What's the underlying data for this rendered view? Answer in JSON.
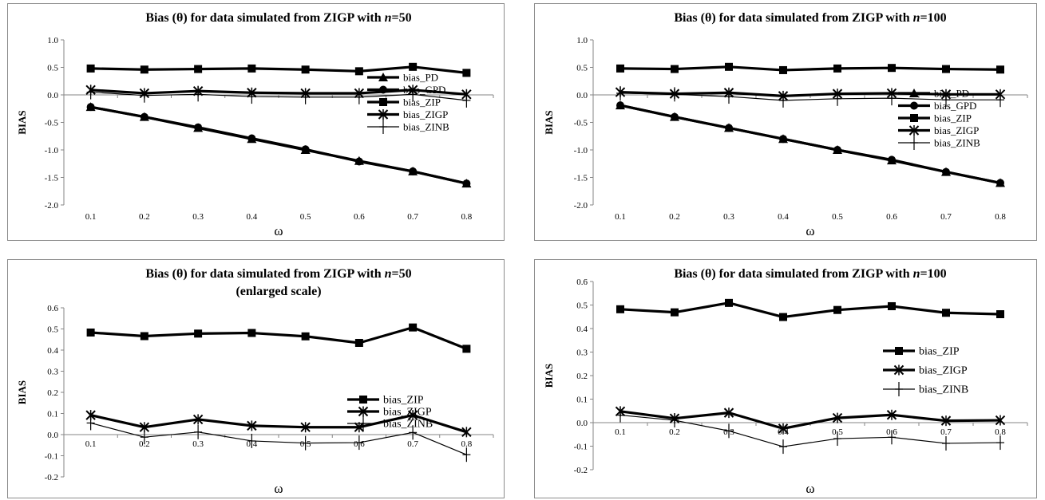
{
  "charts": [
    {
      "type": "line",
      "title_parts": [
        "Bias (θ) for data simulated from ZIGP with ",
        "n",
        "=50"
      ],
      "title_line2": "",
      "xlabel": "ω",
      "ylabel": "BIAS",
      "categories": [
        "0.1",
        "0.2",
        "0.3",
        "0.4",
        "0.5",
        "0.6",
        "0.7",
        "0.8"
      ],
      "ylim": [
        -2.0,
        1.0
      ],
      "yticks": [
        "1.0",
        "0.5",
        "0.0",
        "-0.5",
        "-1.0",
        "-1.5",
        "-2.0"
      ],
      "legend_position": "right",
      "series": [
        {
          "name": "bias_PD",
          "marker": "triangle",
          "values": [
            -0.22,
            -0.4,
            -0.6,
            -0.8,
            -1.0,
            -1.2,
            -1.39,
            -1.61
          ]
        },
        {
          "name": "bias_GPD",
          "marker": "circle",
          "values": [
            -0.22,
            -0.4,
            -0.59,
            -0.79,
            -0.99,
            -1.21,
            -1.39,
            -1.61
          ]
        },
        {
          "name": "bias_ZIP",
          "marker": "square",
          "values": [
            0.48,
            0.46,
            0.47,
            0.48,
            0.46,
            0.43,
            0.51,
            0.4
          ]
        },
        {
          "name": "bias_ZIGP",
          "marker": "star",
          "values": [
            0.09,
            0.03,
            0.07,
            0.04,
            0.03,
            0.03,
            0.09,
            0.01
          ]
        },
        {
          "name": "bias_ZINB",
          "marker": "plus",
          "values": [
            0.05,
            -0.01,
            0.01,
            -0.03,
            -0.04,
            -0.04,
            0.01,
            -0.1
          ]
        }
      ]
    },
    {
      "type": "line",
      "title_parts": [
        "Bias (θ) for data simulated from ZIGP with ",
        "n",
        "=100"
      ],
      "title_line2": "",
      "xlabel": "ω",
      "ylabel": "BIAS",
      "categories": [
        "0.1",
        "0.2",
        "0.3",
        "0.4",
        "0.5",
        "0.6",
        "0.7",
        "0.8"
      ],
      "ylim": [
        -2.0,
        1.0
      ],
      "yticks": [
        "1.0",
        "0.5",
        "0.0",
        "-0.5",
        "-1.0",
        "-1.5",
        "-2.0"
      ],
      "legend_position": "right",
      "series": [
        {
          "name": "bias_PD",
          "marker": "triangle",
          "values": [
            -0.19,
            -0.4,
            -0.6,
            -0.8,
            -1.0,
            -1.19,
            -1.4,
            -1.6
          ]
        },
        {
          "name": "bias_GPD",
          "marker": "circle",
          "values": [
            -0.19,
            -0.4,
            -0.6,
            -0.8,
            -1.0,
            -1.18,
            -1.4,
            -1.6
          ]
        },
        {
          "name": "bias_ZIP",
          "marker": "square",
          "values": [
            0.48,
            0.47,
            0.51,
            0.45,
            0.48,
            0.49,
            0.47,
            0.46
          ]
        },
        {
          "name": "bias_ZIGP",
          "marker": "star",
          "values": [
            0.05,
            0.02,
            0.04,
            -0.02,
            0.02,
            0.03,
            0.01,
            0.01
          ]
        },
        {
          "name": "bias_ZINB",
          "marker": "plus",
          "values": [
            0.03,
            0.01,
            -0.03,
            -0.1,
            -0.07,
            -0.06,
            -0.09,
            -0.09
          ]
        }
      ]
    },
    {
      "type": "line",
      "title_parts": [
        "Bias (θ) for data simulated from ZIGP with ",
        "n",
        "=50"
      ],
      "title_line2": "(enlarged scale)",
      "xlabel": "ω",
      "ylabel": "BIAS",
      "categories": [
        "0.1",
        "0.2",
        "0.3",
        "0.4",
        "0.5",
        "0.6",
        "0.7",
        "0.8"
      ],
      "ylim": [
        -0.2,
        0.6
      ],
      "yticks": [
        "0.6",
        "0.5",
        "0.4",
        "0.3",
        "0.2",
        "0.1",
        "0.0",
        "-0.1",
        "-0.2"
      ],
      "legend_position": "right",
      "series": [
        {
          "name": "bias_ZIP",
          "marker": "square",
          "values": [
            0.483,
            0.466,
            0.478,
            0.481,
            0.465,
            0.434,
            0.507,
            0.406
          ]
        },
        {
          "name": "bias_ZIGP",
          "marker": "star",
          "values": [
            0.092,
            0.035,
            0.072,
            0.042,
            0.035,
            0.035,
            0.092,
            0.012
          ]
        },
        {
          "name": "bias_ZINB",
          "marker": "plus",
          "values": [
            0.055,
            -0.012,
            0.012,
            -0.03,
            -0.04,
            -0.038,
            0.01,
            -0.095
          ]
        }
      ]
    },
    {
      "type": "line",
      "title_parts": [
        "Bias (θ) for data simulated from ZIGP with ",
        "n",
        "=100"
      ],
      "title_line2": "",
      "xlabel": "ω",
      "ylabel": "BIAS",
      "categories": [
        "0.1",
        "0.2",
        "0.3",
        "0.4",
        "0.5",
        "0.6",
        "0.7",
        "0.8"
      ],
      "ylim": [
        -0.2,
        0.6
      ],
      "yticks": [
        "0.6",
        "0.5",
        "0.4",
        "0.3",
        "0.2",
        "0.1",
        "0.0",
        "-0.1",
        "-0.2"
      ],
      "legend_position": "right",
      "series": [
        {
          "name": "bias_ZIP",
          "marker": "square",
          "values": [
            0.482,
            0.469,
            0.509,
            0.449,
            0.479,
            0.495,
            0.467,
            0.461
          ]
        },
        {
          "name": "bias_ZIGP",
          "marker": "star",
          "values": [
            0.048,
            0.018,
            0.042,
            -0.025,
            0.02,
            0.033,
            0.008,
            0.01
          ]
        },
        {
          "name": "bias_ZINB",
          "marker": "plus",
          "values": [
            0.032,
            0.01,
            -0.035,
            -0.102,
            -0.068,
            -0.062,
            -0.088,
            -0.085
          ]
        }
      ]
    }
  ]
}
